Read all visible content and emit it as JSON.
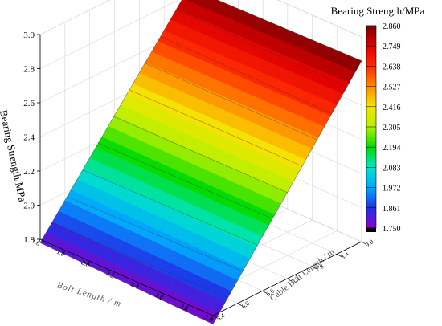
{
  "chart_data": {
    "type": "surface3d",
    "title": "Bearing Strength/MPa",
    "zlabel": "Bearing Strength/MPa",
    "xlabel": "Bolt Length / m",
    "ylabel": "Cable Bolt Length / m",
    "xlim": [
      1.6,
      3.0
    ],
    "ylim": [
      5.4,
      9.0
    ],
    "zlim": [
      1.8,
      3.0
    ],
    "x_ticks": [
      "1.6",
      "1.8",
      "2.0",
      "2.2",
      "2.4",
      "2.6",
      "2.8",
      "3.0"
    ],
    "y_ticks": [
      "5.4",
      "6.0",
      "6.6",
      "7.2",
      "7.8",
      "8.4",
      "9.0"
    ],
    "z_ticks": [
      "1.8",
      "2.0",
      "2.2",
      "2.4",
      "2.6",
      "2.8",
      "3.0"
    ],
    "colorbar": {
      "title": "Bearing Strength/MPa",
      "levels": [
        "2.860",
        "2.749",
        "2.638",
        "2.527",
        "2.416",
        "2.305",
        "2.194",
        "2.083",
        "1.972",
        "1.861",
        "1.750"
      ],
      "colors": [
        "#7a0000",
        "#e00000",
        "#ff2a00",
        "#ff8c00",
        "#f5e600",
        "#b4f000",
        "#00dc00",
        "#00e4c8",
        "#00a8ff",
        "#2030e8",
        "#8a00c8",
        "#000000"
      ]
    },
    "surface_corners": [
      {
        "bolt_length": 1.6,
        "cable_bolt_length": 5.4,
        "strength": 1.78
      },
      {
        "bolt_length": 3.0,
        "cable_bolt_length": 5.4,
        "strength": 1.75
      },
      {
        "bolt_length": 1.6,
        "cable_bolt_length": 9.0,
        "strength": 2.84
      },
      {
        "bolt_length": 3.0,
        "cable_bolt_length": 9.0,
        "strength": 2.86
      }
    ],
    "grid": true
  }
}
